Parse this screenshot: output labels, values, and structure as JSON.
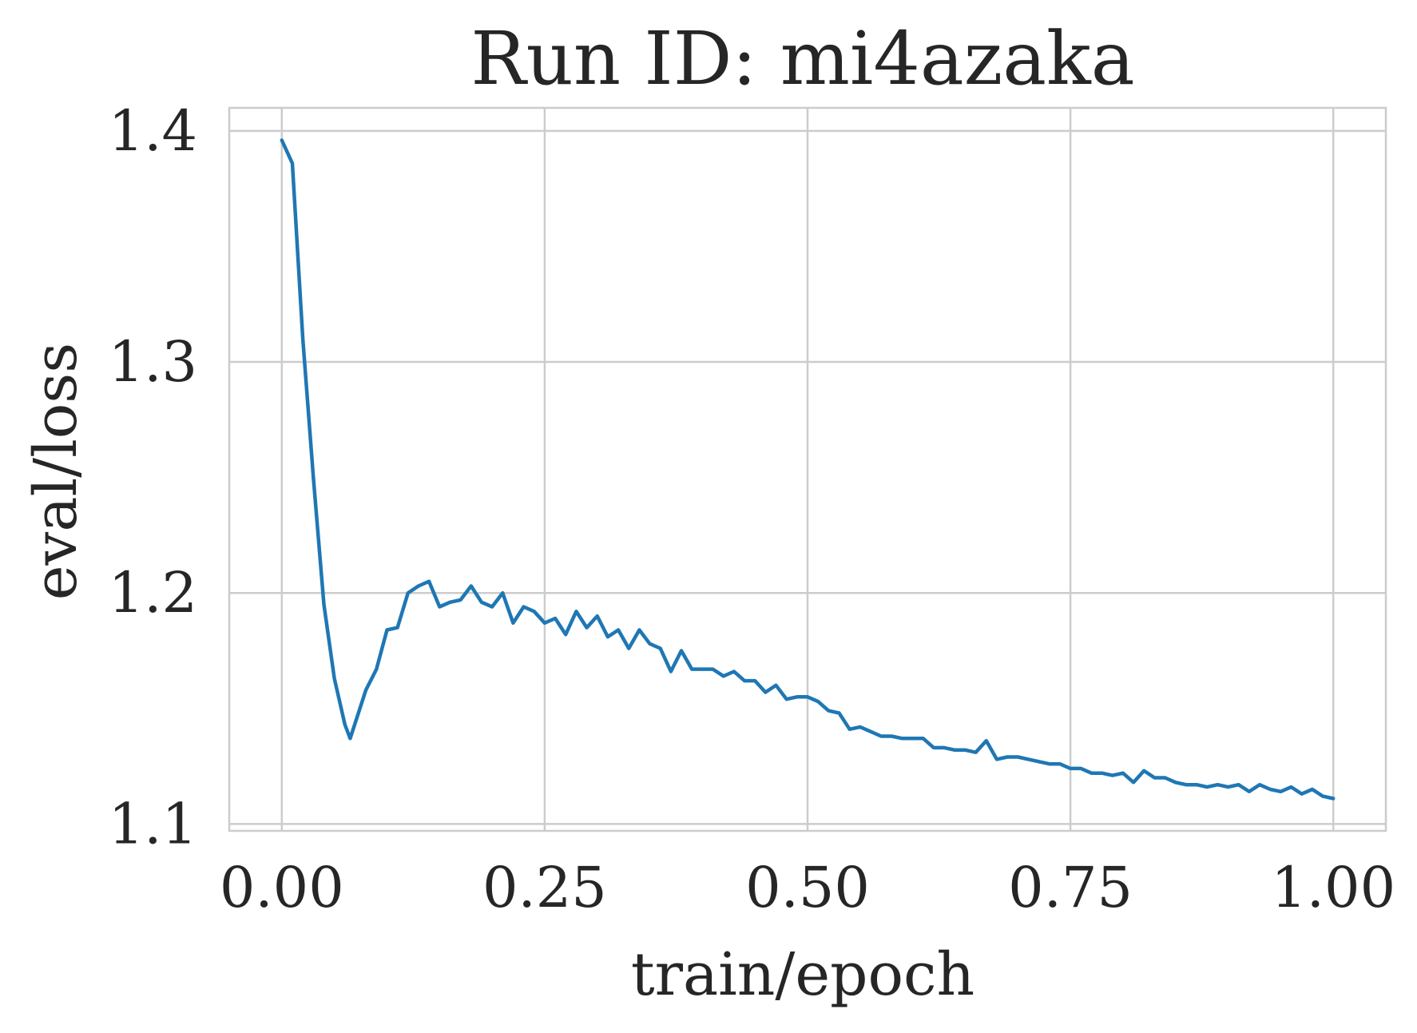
{
  "chart_data": {
    "type": "line",
    "title": "Run ID: mi4azaka",
    "xlabel": "train/epoch",
    "ylabel": "eval/loss",
    "xlim": [
      -0.05,
      1.05
    ],
    "ylim": [
      1.097,
      1.41
    ],
    "xticks": [
      0.0,
      0.25,
      0.5,
      0.75,
      1.0
    ],
    "xtick_labels": [
      "0.00",
      "0.25",
      "0.50",
      "0.75",
      "1.00"
    ],
    "yticks": [
      1.1,
      1.2,
      1.3,
      1.4
    ],
    "ytick_labels": [
      "1.1",
      "1.2",
      "1.3",
      "1.4"
    ],
    "grid": true,
    "legend": "none",
    "colors": {
      "series": "#1f77b4",
      "grid": "#cccccc",
      "text": "#262626"
    },
    "series": [
      {
        "color": "#1f77b4",
        "x": [
          0.0,
          0.01,
          0.02,
          0.03,
          0.04,
          0.05,
          0.06,
          0.065,
          0.08,
          0.09,
          0.1,
          0.11,
          0.12,
          0.13,
          0.14,
          0.15,
          0.16,
          0.17,
          0.18,
          0.19,
          0.2,
          0.21,
          0.22,
          0.23,
          0.24,
          0.25,
          0.26,
          0.27,
          0.28,
          0.29,
          0.3,
          0.31,
          0.32,
          0.33,
          0.34,
          0.35,
          0.36,
          0.37,
          0.38,
          0.39,
          0.4,
          0.41,
          0.42,
          0.43,
          0.44,
          0.45,
          0.46,
          0.47,
          0.48,
          0.49,
          0.5,
          0.51,
          0.52,
          0.53,
          0.54,
          0.55,
          0.56,
          0.57,
          0.58,
          0.59,
          0.6,
          0.61,
          0.62,
          0.63,
          0.64,
          0.65,
          0.66,
          0.67,
          0.68,
          0.69,
          0.7,
          0.71,
          0.72,
          0.73,
          0.74,
          0.75,
          0.76,
          0.77,
          0.78,
          0.79,
          0.8,
          0.81,
          0.82,
          0.83,
          0.84,
          0.85,
          0.86,
          0.87,
          0.88,
          0.89,
          0.9,
          0.91,
          0.92,
          0.93,
          0.94,
          0.95,
          0.96,
          0.97,
          0.98,
          0.99,
          1.0
        ],
        "y": [
          1.396,
          1.386,
          1.31,
          1.25,
          1.195,
          1.163,
          1.143,
          1.137,
          1.158,
          1.167,
          1.184,
          1.185,
          1.2,
          1.203,
          1.205,
          1.194,
          1.196,
          1.197,
          1.203,
          1.196,
          1.194,
          1.2,
          1.187,
          1.194,
          1.192,
          1.187,
          1.189,
          1.182,
          1.192,
          1.185,
          1.19,
          1.181,
          1.184,
          1.176,
          1.184,
          1.178,
          1.176,
          1.166,
          1.175,
          1.167,
          1.167,
          1.167,
          1.164,
          1.166,
          1.162,
          1.162,
          1.157,
          1.16,
          1.154,
          1.155,
          1.155,
          1.153,
          1.149,
          1.148,
          1.141,
          1.142,
          1.14,
          1.138,
          1.138,
          1.137,
          1.137,
          1.137,
          1.133,
          1.133,
          1.132,
          1.132,
          1.131,
          1.136,
          1.128,
          1.129,
          1.129,
          1.128,
          1.127,
          1.126,
          1.126,
          1.124,
          1.124,
          1.122,
          1.122,
          1.121,
          1.122,
          1.118,
          1.123,
          1.12,
          1.12,
          1.118,
          1.117,
          1.117,
          1.116,
          1.117,
          1.116,
          1.117,
          1.114,
          1.117,
          1.115,
          1.114,
          1.116,
          1.113,
          1.115,
          1.112,
          1.111
        ]
      }
    ]
  }
}
